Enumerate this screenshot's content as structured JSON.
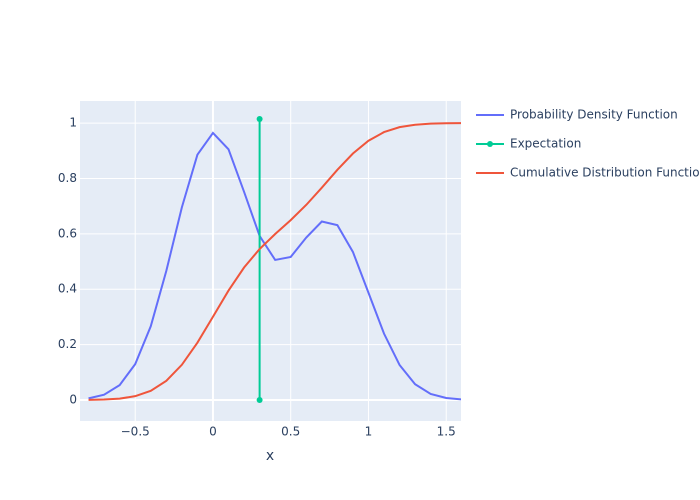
{
  "chart_data": {
    "type": "line",
    "xlabel": "x",
    "xlim": [
      -0.855,
      1.595
    ],
    "ylim": [
      -0.076,
      1.08
    ],
    "xticks": [
      {
        "value": -0.5,
        "label": "−0.5"
      },
      0,
      0.5,
      1,
      1.5
    ],
    "yticks": [
      0,
      0.2,
      0.4,
      0.6,
      0.8,
      1
    ],
    "grid": true,
    "legend": "right",
    "series": [
      {
        "name": "Probability Density Function",
        "color": "#636efa",
        "markers": false,
        "x": [
          -0.8,
          -0.7,
          -0.6,
          -0.5,
          -0.4,
          -0.3,
          -0.2,
          -0.1,
          0,
          0.1,
          0.2,
          0.3,
          0.4,
          0.5,
          0.6,
          0.7,
          0.8,
          0.9,
          1,
          1.1,
          1.2,
          1.3,
          1.4,
          1.5,
          1.6
        ],
        "values": [
          0.0057,
          0.019,
          0.0537,
          0.1296,
          0.2662,
          0.4662,
          0.6957,
          0.8859,
          0.9646,
          0.9056,
          0.7519,
          0.5924,
          0.5058,
          0.5167,
          0.5869,
          0.6447,
          0.6314,
          0.5347,
          0.3874,
          0.2396,
          0.1263,
          0.0567,
          0.0217,
          0.0071,
          0.002
        ]
      },
      {
        "name": "Expectation",
        "color": "#00cc96",
        "markers": true,
        "x": [
          0.3,
          0.3
        ],
        "values": [
          0,
          1.015
        ]
      },
      {
        "name": "Cumulative Distribution Function",
        "color": "#ef553b",
        "markers": false,
        "x": [
          -0.8,
          -0.7,
          -0.6,
          -0.5,
          -0.4,
          -0.3,
          -0.2,
          -0.1,
          0,
          0.1,
          0.2,
          0.3,
          0.4,
          0.5,
          0.6,
          0.7,
          0.8,
          0.9,
          1,
          1.1,
          1.2,
          1.3,
          1.4,
          1.5,
          1.6
        ],
        "values": [
          0.0004,
          0.0016,
          0.0049,
          0.0137,
          0.0329,
          0.0691,
          0.1271,
          0.2069,
          0.3005,
          0.3951,
          0.4785,
          0.5453,
          0.5994,
          0.6498,
          0.7048,
          0.7667,
          0.8313,
          0.8902,
          0.9365,
          0.9677,
          0.9856,
          0.9944,
          0.9981,
          0.9995,
          0.9999
        ]
      }
    ]
  }
}
